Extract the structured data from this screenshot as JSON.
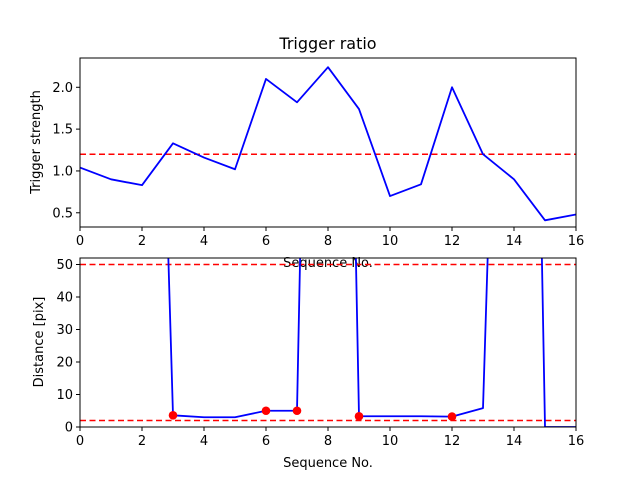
{
  "chart_data": [
    {
      "type": "line",
      "title": "Trigger ratio",
      "xlabel": "Sequence No.",
      "ylabel": "Trigger strength",
      "xlim": [
        0,
        16
      ],
      "ylim": [
        0.33,
        2.35
      ],
      "xticks": [
        0,
        2,
        4,
        6,
        8,
        10,
        12,
        14,
        16
      ],
      "yticks": [
        0.5,
        1.0,
        1.5,
        2.0
      ],
      "ytick_labels": [
        "0.5",
        "1.0",
        "1.5",
        "2.0"
      ],
      "grid": false,
      "series": [
        {
          "color": "#0000ff",
          "style": "solid",
          "x": [
            0,
            1,
            2,
            3,
            4,
            5,
            6,
            7,
            8,
            9,
            10,
            11,
            12,
            13,
            14,
            15,
            16
          ],
          "y": [
            1.04,
            0.9,
            0.83,
            1.33,
            1.16,
            1.02,
            2.1,
            1.82,
            2.24,
            1.74,
            0.7,
            0.84,
            2.0,
            1.2,
            0.9,
            0.41,
            0.48
          ]
        }
      ],
      "hlines": [
        {
          "y": 1.2,
          "color": "#ff0000",
          "style": "dashed"
        }
      ]
    },
    {
      "type": "line",
      "xlabel": "Sequence No.",
      "ylabel": "Distance [pix]",
      "xlim": [
        0,
        16
      ],
      "ylim": [
        0,
        52
      ],
      "xticks": [
        0,
        2,
        4,
        6,
        8,
        10,
        12,
        14,
        16
      ],
      "yticks": [
        0,
        10,
        20,
        30,
        40,
        50
      ],
      "grid": false,
      "series": [
        {
          "color": "#0000ff",
          "style": "solid",
          "x": [
            2.85,
            3,
            4,
            5,
            6,
            7,
            7.1,
            null,
            8.9,
            9,
            10,
            11,
            12,
            13,
            13.15,
            null,
            14.9,
            15,
            16
          ],
          "y": [
            52,
            3.6,
            3.0,
            3.0,
            5.0,
            5.0,
            52,
            null,
            52,
            3.3,
            3.3,
            3.3,
            3.2,
            5.8,
            52,
            null,
            52,
            0,
            0
          ]
        },
        {
          "color": "#ff0000",
          "style": "markers",
          "x": [
            3,
            6,
            7,
            9,
            12
          ],
          "y": [
            3.6,
            5.0,
            5.0,
            3.3,
            3.2
          ]
        }
      ],
      "hlines": [
        {
          "y": 50,
          "color": "#ff0000",
          "style": "dashed"
        },
        {
          "y": 2,
          "color": "#ff0000",
          "style": "dashed"
        }
      ]
    }
  ]
}
